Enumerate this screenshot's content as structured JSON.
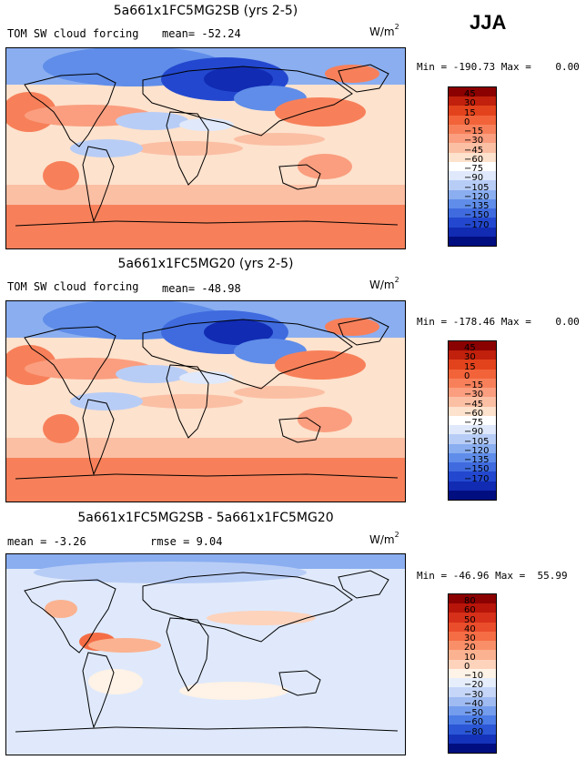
{
  "season": "JJA",
  "panels": [
    {
      "title": "5a661x1FC5MG2SB (yrs 2-5)",
      "left_label": "TOM SW cloud forcing",
      "stat_label": "mean= -52.24",
      "units_base": "W/m",
      "units_exp": "2",
      "minmax": "Min = -190.73 Max =    0.00",
      "colorbar": {
        "labels": [
          "45",
          "30",
          "15",
          "0",
          "−15",
          "−30",
          "−45",
          "−60",
          "−75",
          "−90",
          "−105",
          "−120",
          "−135",
          "−150",
          "−170"
        ],
        "colors": [
          "#8b0000",
          "#c0200c",
          "#e3431c",
          "#f2633a",
          "#f7805a",
          "#fa9e7f",
          "#fbbfa4",
          "#fde2cd",
          "#ffffff",
          "#dfe9fb",
          "#b8cdf6",
          "#8aaef0",
          "#5f8de9",
          "#3f6bdf",
          "#2348cf",
          "#112bb3",
          "#000e80"
        ]
      }
    },
    {
      "title": "5a661x1FC5MG20 (yrs 2-5)",
      "left_label": "TOM SW cloud forcing",
      "stat_label": "mean= -48.98",
      "units_base": "W/m",
      "units_exp": "2",
      "minmax": "Min = -178.46 Max =    0.00",
      "colorbar": {
        "labels": [
          "45",
          "30",
          "15",
          "0",
          "−15",
          "−30",
          "−45",
          "−60",
          "−75",
          "−90",
          "−105",
          "−120",
          "−135",
          "−150",
          "−170"
        ],
        "colors": [
          "#8b0000",
          "#c0200c",
          "#e3431c",
          "#f2633a",
          "#f7805a",
          "#fa9e7f",
          "#fbbfa4",
          "#fde2cd",
          "#ffffff",
          "#dfe9fb",
          "#b8cdf6",
          "#8aaef0",
          "#5f8de9",
          "#3f6bdf",
          "#2348cf",
          "#112bb3",
          "#000e80"
        ]
      }
    },
    {
      "title": "5a661x1FC5MG2SB - 5a661x1FC5MG20",
      "left_label": "mean =  -3.26",
      "stat_label": "rmse =  9.04",
      "units_base": "W/m",
      "units_exp": "2",
      "minmax": "Min = -46.96 Max =  55.99",
      "colorbar": {
        "labels": [
          "80",
          "60",
          "50",
          "40",
          "30",
          "20",
          "10",
          "0",
          "−10",
          "−20",
          "−30",
          "−40",
          "−50",
          "−60",
          "−80"
        ],
        "colors": [
          "#8b0000",
          "#b8150a",
          "#d6301a",
          "#ea4d2b",
          "#f56d45",
          "#f98f68",
          "#fbb290",
          "#fdd3bc",
          "#fff2e6",
          "#e6eefc",
          "#c5d6f8",
          "#9fbbf2",
          "#759ded",
          "#4c7ce6",
          "#2b57d6",
          "#1433ba",
          "#000e80"
        ]
      }
    }
  ]
}
